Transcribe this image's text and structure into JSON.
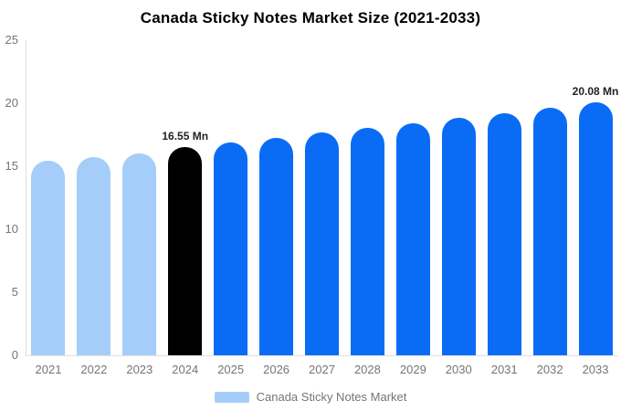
{
  "chart_data": {
    "type": "bar",
    "title": "Canada Sticky Notes Market Size (2021-2033)",
    "unit": "Mn",
    "categories": [
      "2021",
      "2022",
      "2023",
      "2024",
      "2025",
      "2026",
      "2027",
      "2028",
      "2029",
      "2030",
      "2031",
      "2032",
      "2033"
    ],
    "series": [
      {
        "name": "Canada Sticky Notes Market",
        "values": [
          15.4,
          15.7,
          16.0,
          16.55,
          16.91,
          17.28,
          17.65,
          18.03,
          18.42,
          18.82,
          19.23,
          19.65,
          20.08
        ]
      }
    ],
    "point_roles": [
      "historical",
      "historical",
      "historical",
      "highlight",
      "forecast",
      "forecast",
      "forecast",
      "forecast",
      "forecast",
      "forecast",
      "forecast",
      "forecast",
      "forecast"
    ],
    "palette": {
      "historical": "#a5cdfa",
      "highlight": "#000000",
      "forecast": "#0a6cf5"
    },
    "annotations": [
      {
        "category": "2024",
        "text": "16.55 Mn"
      },
      {
        "category": "2033",
        "text": "20.08 Mn"
      }
    ],
    "xlabel": "",
    "ylabel": "",
    "ylim": [
      0,
      25
    ],
    "yticks": [
      0,
      5,
      10,
      15,
      20,
      25
    ],
    "grid": false,
    "legend": {
      "position": "bottom",
      "items": [
        {
          "label": "Canada Sticky Notes Market",
          "swatch_color": "#a5cdfa"
        }
      ]
    }
  },
  "colors": {
    "background": "#ffffff",
    "title_text": "#000000",
    "axis_text": "#757575",
    "annotation_text": "#222222",
    "axis_line": "#e0e0e0"
  }
}
